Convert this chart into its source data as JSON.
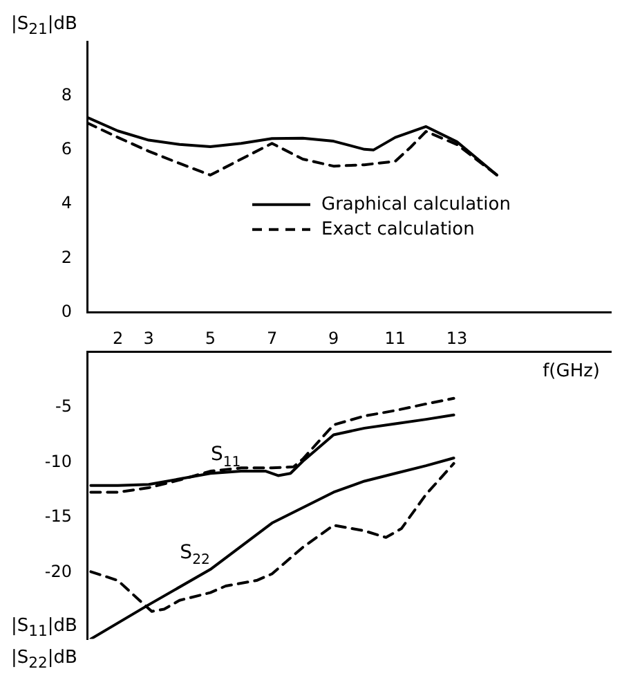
{
  "chart_data": [
    {
      "type": "line",
      "ylabel": "|S$_{21}$|dB",
      "xlim": [
        1,
        18
      ],
      "ylim": [
        0,
        10
      ],
      "yticks": [
        0,
        2,
        4,
        6,
        8
      ],
      "tick_labels": "y",
      "grid": false,
      "legend": "center",
      "marker": "none",
      "series": [
        {
          "name": "Graphical calculation",
          "color": "#000000",
          "line_style": "solid",
          "x": [
            1,
            2,
            3,
            4,
            5,
            6,
            7,
            8,
            9,
            10,
            10.3,
            11,
            12,
            13,
            14.3
          ],
          "values": [
            7.2,
            6.7,
            6.36,
            6.2,
            6.12,
            6.24,
            6.42,
            6.43,
            6.32,
            6.02,
            6.0,
            6.46,
            6.86,
            6.3,
            5.07
          ]
        },
        {
          "name": "Exact calculation",
          "color": "#000000",
          "line_style": "dashed",
          "x": [
            1,
            2,
            3,
            4,
            5,
            6,
            7,
            8,
            9,
            10,
            11,
            11.5,
            12,
            13,
            14.3
          ],
          "values": [
            7.0,
            6.46,
            5.95,
            5.5,
            5.07,
            5.66,
            6.24,
            5.66,
            5.4,
            5.45,
            5.58,
            6.1,
            6.68,
            6.2,
            5.07
          ]
        }
      ]
    },
    {
      "type": "line",
      "ylabel": "|S$_{11}$|dB\n|S$_{22}$|dB",
      "xlabel": "f(GHz)",
      "xlim": [
        1,
        18
      ],
      "xticks": [
        2,
        3,
        5,
        7,
        9,
        11,
        13
      ],
      "ylim": [
        -26,
        0
      ],
      "yticks": [
        -5,
        -10,
        -15,
        -20
      ],
      "grid": false,
      "marker": "none",
      "annotations": [
        {
          "text": "S$_{11}$",
          "x": 6,
          "y": -10.8
        },
        {
          "text": "S$_{22}$",
          "x": 5,
          "y": -19.7
        }
      ],
      "series": [
        {
          "color": "#000000",
          "line_style": "solid",
          "x": [
            1.12,
            2,
            3,
            4,
            5,
            6,
            6.8,
            7.2,
            7.6,
            8,
            9,
            10,
            11,
            12,
            12.9
          ],
          "values": [
            -12.1,
            -12.1,
            -12.0,
            -11.5,
            -11.0,
            -10.8,
            -10.8,
            -11.2,
            -11.0,
            -9.9,
            -7.5,
            -6.9,
            -6.5,
            -6.1,
            -5.7
          ]
        },
        {
          "color": "#000000",
          "line_style": "dashed",
          "x": [
            1.12,
            2,
            3,
            4,
            5,
            6,
            7,
            7.7,
            8,
            9,
            10,
            11,
            12,
            12.9
          ],
          "values": [
            -12.7,
            -12.7,
            -12.3,
            -11.6,
            -10.8,
            -10.5,
            -10.5,
            -10.4,
            -9.7,
            -6.6,
            -5.8,
            -5.3,
            -4.7,
            -4.2
          ]
        },
        {
          "color": "#000000",
          "line_style": "solid",
          "x": [
            1.12,
            3,
            5,
            7,
            9,
            10,
            11,
            12,
            12.9
          ],
          "values": [
            -26.0,
            -22.9,
            -19.7,
            -15.5,
            -12.7,
            -11.7,
            -11.0,
            -10.3,
            -9.6
          ]
        },
        {
          "color": "#000000",
          "line_style": "dashed",
          "x": [
            1.12,
            2,
            2.7,
            3.1,
            3.5,
            4,
            5,
            5.5,
            6.5,
            7,
            8,
            9,
            10,
            10.7,
            11.2,
            12,
            12.9
          ],
          "values": [
            -19.9,
            -20.7,
            -22.5,
            -23.5,
            -23.3,
            -22.5,
            -21.8,
            -21.2,
            -20.7,
            -20.1,
            -17.7,
            -15.7,
            -16.2,
            -16.8,
            -16.0,
            -12.9,
            -10.1
          ]
        }
      ]
    }
  ]
}
